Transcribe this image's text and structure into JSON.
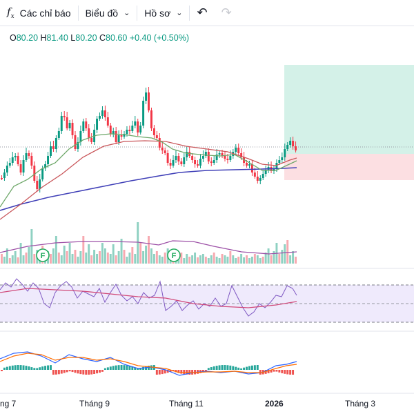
{
  "toolbar": {
    "indicators_label": "Các chỉ báo",
    "chart_type_label": "Biểu đồ",
    "profile_label": "Hồ sơ"
  },
  "ohlc": {
    "o_key": "O",
    "o": "80.20",
    "h_key": "H",
    "h": "81.40",
    "l_key": "L",
    "l": "80.20",
    "c_key": "C",
    "c": "80.60",
    "change": "+0.40 (+0.50%)"
  },
  "event_markers": {
    "label": "F"
  },
  "x_axis": {
    "labels": [
      "ng 7",
      "Tháng 9",
      "Tháng 11",
      "2026",
      "Tháng 3"
    ]
  },
  "colors": {
    "up": "#089981",
    "down": "#f23645",
    "ma_fast": "#6fa86a",
    "ma_mid": "#c9565a",
    "ma_slow": "#3f3fb7",
    "rsi": "#7e57c2",
    "macd_fast": "#2962ff",
    "macd_slow": "#ff6d00"
  },
  "chart_data": {
    "type": "candlestick",
    "visible_range": "Jul 2025 – Mar 2026",
    "last_ohlc": {
      "open": 80.2,
      "high": 81.4,
      "low": 80.2,
      "close": 80.6,
      "change": 0.4,
      "change_pct": 0.5
    },
    "panes": [
      "price with moving averages",
      "volume",
      "RSI",
      "MACD"
    ],
    "rsi_band": [
      30,
      70
    ],
    "grid": false
  }
}
